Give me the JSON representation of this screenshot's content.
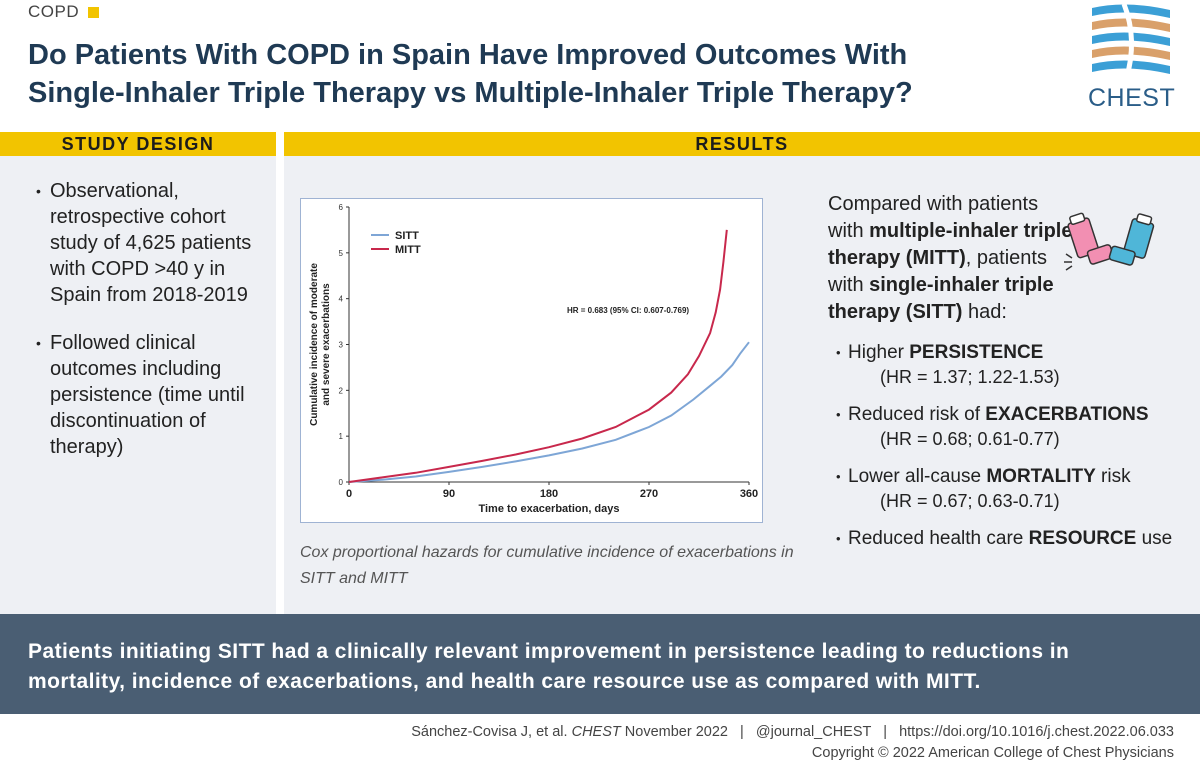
{
  "header": {
    "topic": "COPD",
    "title_line1": "Do Patients With COPD in Spain Have Improved Outcomes With",
    "title_line2": "Single-Inhaler Triple Therapy vs Multiple-Inhaler Triple Therapy?",
    "logo_text": "CHEST"
  },
  "study_design": {
    "heading": "STUDY DESIGN",
    "bullets": [
      "Observational, retrospective cohort study of 4,625 patients with COPD >40 y in Spain from 2018-2019",
      "Followed clinical outcomes including persistence (time until discontinuation of therapy)"
    ]
  },
  "results": {
    "heading": "RESULTS",
    "caption": "Cox proportional hazards for cumulative incidence of exacerbations in SITT and MITT",
    "intro": {
      "p1": "Compared with patients with ",
      "b1": "multiple-inhaler triple therapy (MITT)",
      "p2": ", patients with ",
      "b2": "single-inhaler triple therapy (SITT)",
      "p3": " had:"
    },
    "findings": [
      {
        "pre": "Higher ",
        "bold": "PERSISTENCE",
        "post": "",
        "hr": "(HR = 1.37; 1.22-1.53)"
      },
      {
        "pre": "Reduced risk of ",
        "bold": "EXACERBATIONS",
        "post": "",
        "hr": "(HR = 0.68; 0.61-0.77)"
      },
      {
        "pre": "Lower all-cause ",
        "bold": "MORTALITY",
        "post": " risk",
        "hr": "(HR = 0.67; 0.63-0.71)"
      },
      {
        "pre": "Reduced health care ",
        "bold": "RESOURCE",
        "post": " use",
        "hr": ""
      }
    ]
  },
  "chart_data": {
    "type": "line",
    "title": "",
    "xlabel": "Time to exacerbation, days",
    "ylabel": "Cumulative incidence of moderate and severe exacerbations",
    "xlim": [
      0,
      360
    ],
    "ylim": [
      0,
      6
    ],
    "xticks": [
      0,
      90,
      180,
      270,
      360
    ],
    "yticks": [
      0,
      1,
      2,
      3,
      4,
      5,
      6
    ],
    "annotation": "HR = 0.683 (95% CI: 0.607-0.769)",
    "legend_position": "top-left",
    "series": [
      {
        "name": "SITT",
        "color": "#7ea6d6",
        "x": [
          0,
          30,
          60,
          90,
          120,
          150,
          180,
          210,
          240,
          270,
          290,
          310,
          325,
          335,
          345,
          352,
          360
        ],
        "y": [
          0,
          0.05,
          0.12,
          0.22,
          0.33,
          0.45,
          0.58,
          0.73,
          0.92,
          1.2,
          1.45,
          1.8,
          2.1,
          2.3,
          2.55,
          2.8,
          3.05
        ]
      },
      {
        "name": "MITT",
        "color": "#c8284c",
        "x": [
          0,
          30,
          60,
          90,
          120,
          150,
          180,
          210,
          240,
          270,
          290,
          305,
          315,
          325,
          330,
          334,
          337,
          340
        ],
        "y": [
          0,
          0.1,
          0.2,
          0.33,
          0.46,
          0.6,
          0.76,
          0.95,
          1.2,
          1.58,
          1.95,
          2.35,
          2.75,
          3.25,
          3.7,
          4.2,
          4.8,
          5.5
        ]
      }
    ]
  },
  "conclusion": "Patients initiating SITT had a clinically relevant improvement in persistence leading to reductions in mortality, incidence of exacerbations, and health care resource use as compared with MITT.",
  "footer": {
    "authors": "Sánchez-Covisa J, et al. ",
    "journal": "CHEST",
    "date": " November 2022",
    "sep": "|",
    "handle": "@journal_CHEST",
    "doi": "https://doi.org/10.1016/j.chest.2022.06.033",
    "copyright": "Copyright © 2022 American College of Chest Physicians"
  },
  "colors": {
    "accent_yellow": "#f2c400",
    "title_navy": "#1f3a54",
    "panel_bg": "#eef0f4",
    "banner_bg": "#4a5e73",
    "sitt": "#7ea6d6",
    "mitt": "#c8284c"
  },
  "icons": [
    "chest-logo-icon",
    "inhaler-icon"
  ]
}
